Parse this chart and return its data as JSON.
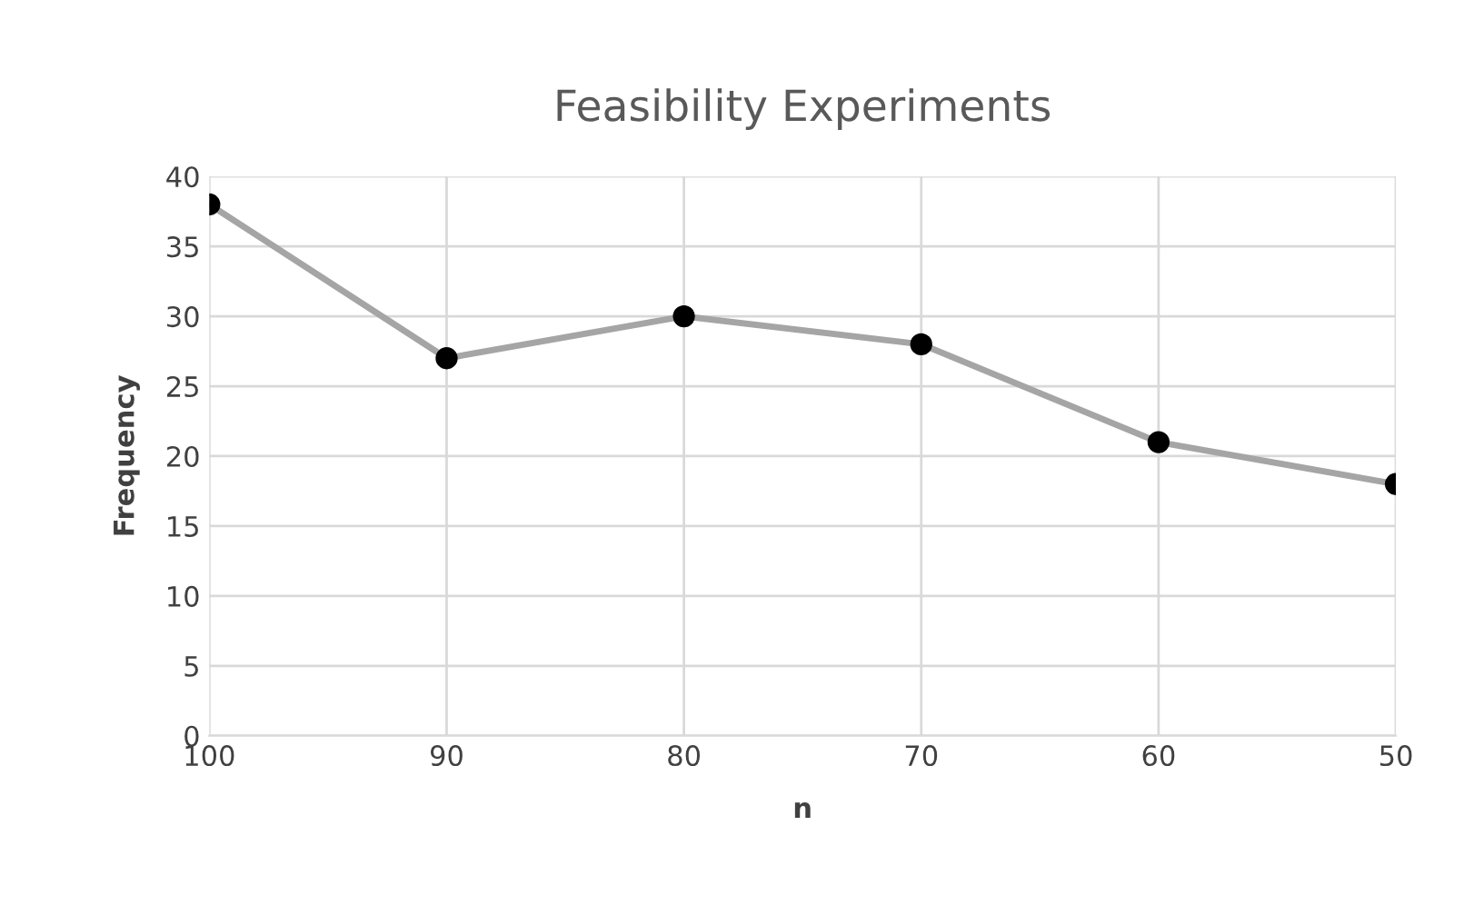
{
  "chart_data": {
    "type": "line",
    "title": "Feasibility Experiments",
    "xlabel": "n",
    "ylabel": "Frequency",
    "x": [
      100,
      90,
      80,
      70,
      60,
      50
    ],
    "series": [
      {
        "color": "#a5a5a5",
        "values": [
          38,
          27,
          30,
          28,
          21,
          18
        ]
      }
    ],
    "xlim": [
      100,
      50
    ],
    "xticks": [
      100,
      90,
      80,
      70,
      60,
      50
    ],
    "ylim": [
      0,
      40
    ],
    "yticks": [
      0,
      5,
      10,
      15,
      20,
      25,
      30,
      35,
      40
    ],
    "grid": true,
    "marker": "circle",
    "line_style": "solid"
  }
}
